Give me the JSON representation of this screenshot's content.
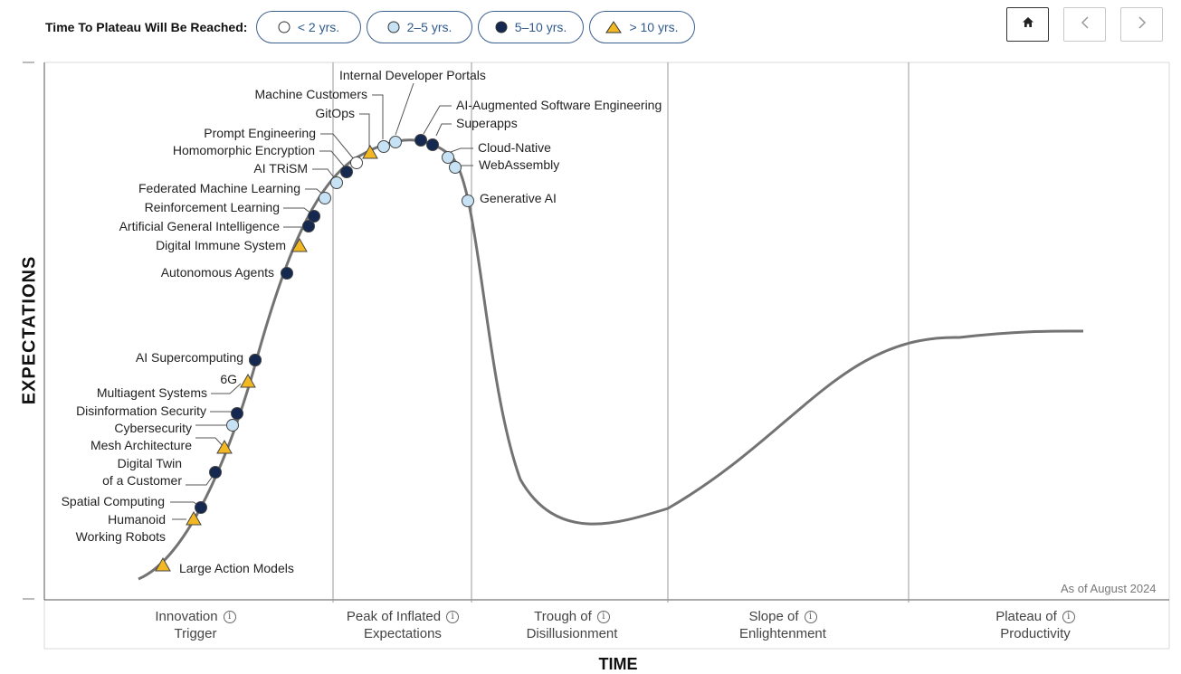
{
  "legend": {
    "label": "Time To Plateau Will Be Reached:",
    "items": [
      {
        "label": "< 2 yrs.",
        "marker": "white-circle"
      },
      {
        "label": "2–5 yrs.",
        "marker": "lightblue-circle"
      },
      {
        "label": "5–10 yrs.",
        "marker": "navy-circle"
      },
      {
        "label": "> 10 yrs.",
        "marker": "yellow-triangle"
      }
    ]
  },
  "nav": {
    "home": "home-icon",
    "prev": "chevron-left-icon",
    "next": "chevron-right-icon"
  },
  "axes": {
    "y": "EXPECTATIONS",
    "x": "TIME"
  },
  "as_of": "As of August 2024",
  "phases": [
    {
      "line1": "Innovation",
      "line2": "Trigger"
    },
    {
      "line1": "Peak of Inflated",
      "line2": "Expectations"
    },
    {
      "line1": "Trough of",
      "line2": "Disillusionment"
    },
    {
      "line1": "Slope of",
      "line2": "Enlightenment"
    },
    {
      "line1": "Plateau of",
      "line2": "Productivity"
    }
  ],
  "colors": {
    "white": "#ffffff",
    "light_blue": "#c6e2f4",
    "navy": "#142850",
    "yellow": "#f2b824",
    "curve": "#737373"
  },
  "technologies": [
    {
      "name": "Large Action Models",
      "plateau": "> 10 yrs."
    },
    {
      "name": "Humanoid Working Robots",
      "plateau": "> 10 yrs."
    },
    {
      "name": "Spatial Computing",
      "plateau": "5–10 yrs."
    },
    {
      "name": "Digital Twin of a Customer",
      "plateau": "5–10 yrs."
    },
    {
      "name": "Mesh Architecture",
      "plateau": "> 10 yrs."
    },
    {
      "name": "Cybersecurity",
      "plateau": "2–5 yrs."
    },
    {
      "name": "Disinformation Security",
      "plateau": "5–10 yrs."
    },
    {
      "name": "Multiagent Systems",
      "plateau": "> 10 yrs."
    },
    {
      "name": "6G",
      "plateau": "2–5 yrs."
    },
    {
      "name": "AI Supercomputing",
      "plateau": "5–10 yrs."
    },
    {
      "name": "Autonomous Agents",
      "plateau": "5–10 yrs."
    },
    {
      "name": "Digital Immune System",
      "plateau": "> 10 yrs."
    },
    {
      "name": "Artificial General Intelligence",
      "plateau": "5–10 yrs."
    },
    {
      "name": "Reinforcement Learning",
      "plateau": "5–10 yrs."
    },
    {
      "name": "Federated Machine Learning",
      "plateau": "2–5 yrs."
    },
    {
      "name": "AI TRiSM",
      "plateau": "5–10 yrs."
    },
    {
      "name": "Homomorphic Encryption",
      "plateau": "2–5 yrs."
    },
    {
      "name": "Prompt Engineering",
      "plateau": "< 2 yrs."
    },
    {
      "name": "GitOps",
      "plateau": "> 10 yrs."
    },
    {
      "name": "Machine Customers",
      "plateau": "2–5 yrs."
    },
    {
      "name": "Internal Developer Portals",
      "plateau": "2–5 yrs."
    },
    {
      "name": "AI-Augmented Software Engineering",
      "plateau": "5–10 yrs."
    },
    {
      "name": "Superapps",
      "plateau": "5–10 yrs."
    },
    {
      "name": "Cloud-Native",
      "plateau": "2–5 yrs."
    },
    {
      "name": "WebAssembly",
      "plateau": "2–5 yrs."
    },
    {
      "name": "Generative AI",
      "plateau": "2–5 yrs."
    }
  ]
}
